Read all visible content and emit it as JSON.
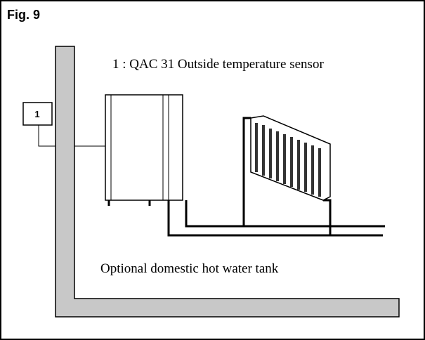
{
  "figure": "Fig. 9",
  "sensor_box": "1",
  "legend": "1 :  QAC 31 Outside temperature sensor",
  "caption": "Optional domestic hot water tank"
}
